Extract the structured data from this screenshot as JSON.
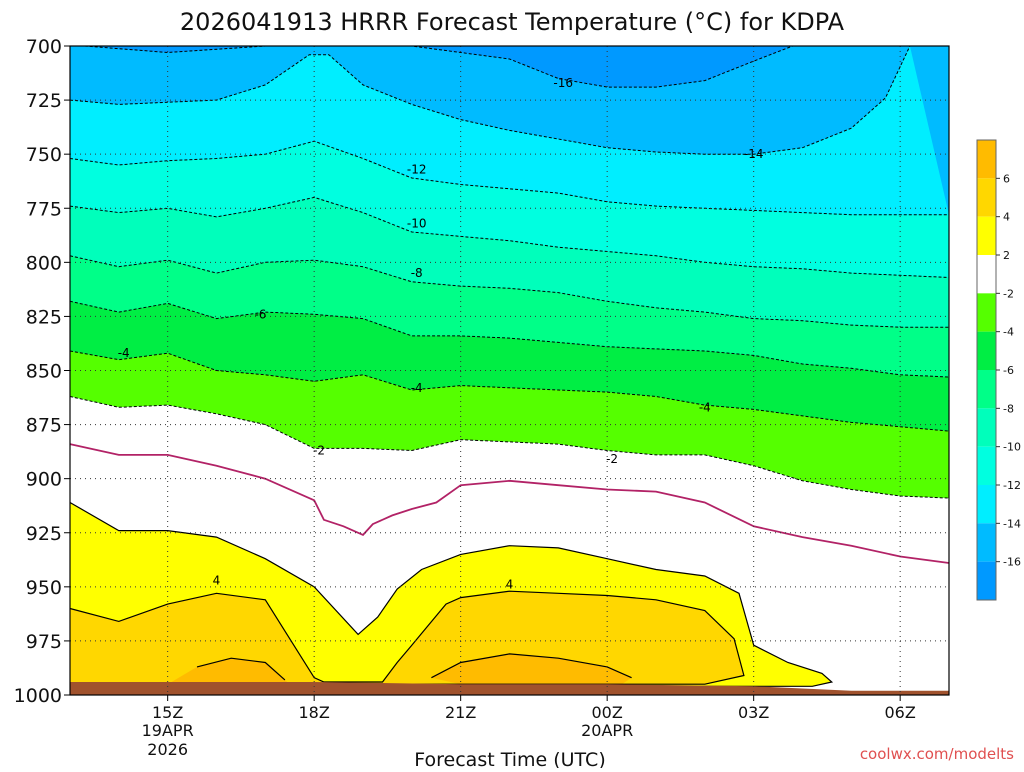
{
  "chart_data": {
    "type": "contour",
    "title": "2026041913 HRRR Forecast Temperature (°C) for KDPA",
    "xlabel": "Forecast Time (UTC)",
    "ylabel": "",
    "x_ticks": [
      {
        "hour": 15,
        "label": "15Z",
        "sub1": "19APR",
        "sub2": "2026"
      },
      {
        "hour": 18,
        "label": "18Z",
        "sub1": "",
        "sub2": ""
      },
      {
        "hour": 21,
        "label": "21Z",
        "sub1": "",
        "sub2": ""
      },
      {
        "hour": 24,
        "label": "00Z",
        "sub1": "20APR",
        "sub2": ""
      },
      {
        "hour": 27,
        "label": "03Z",
        "sub1": "",
        "sub2": ""
      },
      {
        "hour": 30,
        "label": "06Z",
        "sub1": "",
        "sub2": ""
      }
    ],
    "xlim_hours": [
      13,
      31
    ],
    "y_pressure_ticks": [
      700,
      725,
      750,
      775,
      800,
      825,
      850,
      875,
      900,
      925,
      950,
      975,
      1000
    ],
    "ylim_hPa": [
      1000,
      700
    ],
    "colorbar": {
      "labels": [
        6,
        4,
        2,
        -2,
        -4,
        -6,
        -8,
        -10,
        -12,
        -14,
        -16
      ],
      "bands": [
        "#ffbb00",
        "#ffd700",
        "#ffff00",
        "#ffffff",
        "#55ff00",
        "#00ee44",
        "#00ff88",
        "#00ffbb",
        "#00ffe0",
        "#00eeff",
        "#00bbff",
        "#0099ff"
      ]
    },
    "contour_labels": [
      {
        "hour": 23.1,
        "p": 717,
        "text": "-16"
      },
      {
        "hour": 27.0,
        "p": 750,
        "text": "-14"
      },
      {
        "hour": 20.1,
        "p": 757,
        "text": "-12"
      },
      {
        "hour": 20.1,
        "p": 782,
        "text": "-10"
      },
      {
        "hour": 20.1,
        "p": 805,
        "text": "-8"
      },
      {
        "hour": 16.9,
        "p": 824,
        "text": "-6"
      },
      {
        "hour": 14.1,
        "p": 842,
        "text": "-4"
      },
      {
        "hour": 20.1,
        "p": 858,
        "text": "-4"
      },
      {
        "hour": 26.0,
        "p": 867,
        "text": "-4"
      },
      {
        "hour": 18.1,
        "p": 887,
        "text": "-2"
      },
      {
        "hour": 24.1,
        "p": 891,
        "text": "-2"
      },
      {
        "hour": 16.0,
        "p": 947,
        "text": "4"
      },
      {
        "hour": 22.0,
        "p": 949,
        "text": "4"
      }
    ],
    "surface_color": "#a0522d",
    "zero_line_color": "#b22266",
    "grid": true,
    "watermark": "coolwx.com/modelts"
  }
}
